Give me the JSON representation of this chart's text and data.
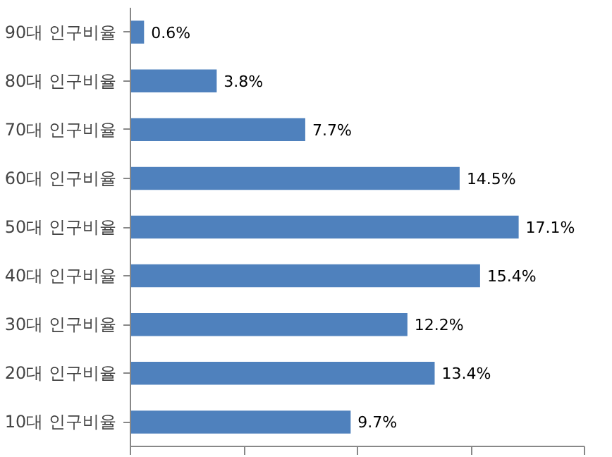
{
  "chart_data": {
    "type": "bar",
    "orientation": "horizontal",
    "categories": [
      "90대 인구비율",
      "80대 인구비율",
      "70대 인구비율",
      "60대 인구비율",
      "50대 인구비율",
      "40대 인구비율",
      "30대 인구비율",
      "20대 인구비율",
      "10대 인구비율"
    ],
    "values": [
      0.6,
      3.8,
      7.7,
      14.5,
      17.1,
      15.4,
      12.2,
      13.4,
      9.7
    ],
    "value_labels": [
      "0.6%",
      "3.8%",
      "7.7%",
      "14.5%",
      "17.1%",
      "15.4%",
      "12.2%",
      "13.4%",
      "9.7%"
    ],
    "color": "#4f81bd",
    "xlim": [
      0,
      20
    ],
    "xticks": [
      {
        "value": 0,
        "label": null
      },
      {
        "value": 5,
        "label": null
      },
      {
        "value": 10,
        "label": null
      },
      {
        "value": 15,
        "label": null
      },
      {
        "value": 20,
        "label": null
      }
    ],
    "tick_labels": "y",
    "grid": false
  }
}
